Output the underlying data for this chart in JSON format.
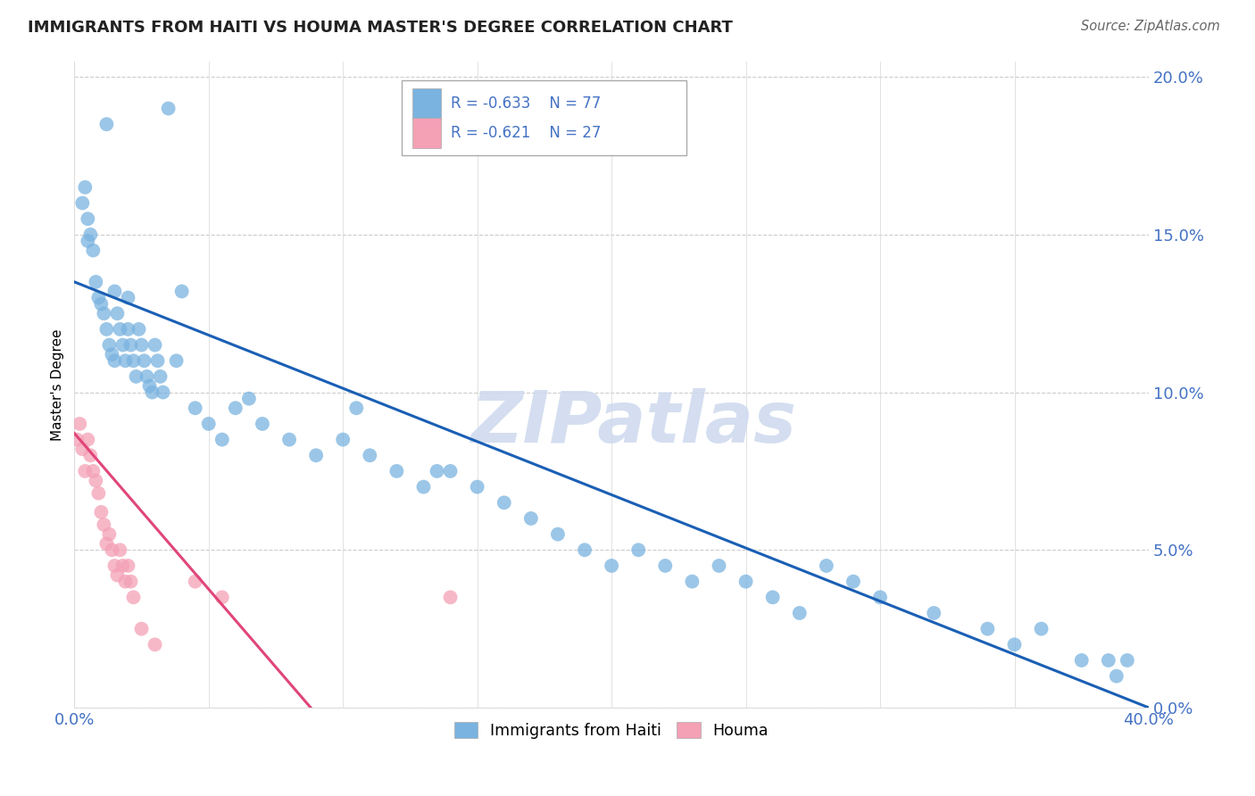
{
  "title": "IMMIGRANTS FROM HAITI VS HOUMA MASTER'S DEGREE CORRELATION CHART",
  "source": "Source: ZipAtlas.com",
  "ylabel": "Master's Degree",
  "right_ytick_vals": [
    0.0,
    5.0,
    10.0,
    15.0,
    20.0
  ],
  "xmin": 0.0,
  "xmax": 40.0,
  "ymin": 0.0,
  "ymax": 20.5,
  "blue_R": -0.633,
  "blue_N": 77,
  "pink_R": -0.621,
  "pink_N": 27,
  "legend_label_blue": "Immigrants from Haiti",
  "legend_label_pink": "Houma",
  "blue_color": "#7ab3e0",
  "pink_color": "#f4a0b5",
  "blue_line_color": "#1a5fb5",
  "pink_line_color": "#e0457a",
  "watermark": "ZIPatlas",
  "blue_scatter_x": [
    0.3,
    0.4,
    0.5,
    0.5,
    0.6,
    0.7,
    0.8,
    0.9,
    1.0,
    1.1,
    1.2,
    1.2,
    1.3,
    1.4,
    1.5,
    1.5,
    1.6,
    1.7,
    1.8,
    1.9,
    2.0,
    2.0,
    2.1,
    2.2,
    2.3,
    2.4,
    2.5,
    2.6,
    2.7,
    2.8,
    2.9,
    3.0,
    3.1,
    3.2,
    3.3,
    3.5,
    3.8,
    4.0,
    4.5,
    5.0,
    5.5,
    6.0,
    6.5,
    7.0,
    8.0,
    9.0,
    10.0,
    10.5,
    11.0,
    12.0,
    13.0,
    13.5,
    14.0,
    15.0,
    16.0,
    17.0,
    18.0,
    19.0,
    20.0,
    21.0,
    22.0,
    23.0,
    24.0,
    25.0,
    26.0,
    27.0,
    28.0,
    29.0,
    30.0,
    32.0,
    34.0,
    35.0,
    36.0,
    37.5,
    38.5,
    38.8,
    39.2
  ],
  "blue_scatter_y": [
    16.0,
    16.5,
    15.5,
    14.8,
    15.0,
    14.5,
    13.5,
    13.0,
    12.8,
    12.5,
    18.5,
    12.0,
    11.5,
    11.2,
    13.2,
    11.0,
    12.5,
    12.0,
    11.5,
    11.0,
    13.0,
    12.0,
    11.5,
    11.0,
    10.5,
    12.0,
    11.5,
    11.0,
    10.5,
    10.2,
    10.0,
    11.5,
    11.0,
    10.5,
    10.0,
    19.0,
    11.0,
    13.2,
    9.5,
    9.0,
    8.5,
    9.5,
    9.8,
    9.0,
    8.5,
    8.0,
    8.5,
    9.5,
    8.0,
    7.5,
    7.0,
    7.5,
    7.5,
    7.0,
    6.5,
    6.0,
    5.5,
    5.0,
    4.5,
    5.0,
    4.5,
    4.0,
    4.5,
    4.0,
    3.5,
    3.0,
    4.5,
    4.0,
    3.5,
    3.0,
    2.5,
    2.0,
    2.5,
    1.5,
    1.5,
    1.0,
    1.5
  ],
  "pink_scatter_x": [
    0.1,
    0.2,
    0.3,
    0.4,
    0.5,
    0.6,
    0.7,
    0.8,
    0.9,
    1.0,
    1.1,
    1.2,
    1.3,
    1.4,
    1.5,
    1.6,
    1.7,
    1.8,
    1.9,
    2.0,
    2.1,
    2.2,
    2.5,
    3.0,
    4.5,
    5.5,
    14.0
  ],
  "pink_scatter_y": [
    8.5,
    9.0,
    8.2,
    7.5,
    8.5,
    8.0,
    7.5,
    7.2,
    6.8,
    6.2,
    5.8,
    5.2,
    5.5,
    5.0,
    4.5,
    4.2,
    5.0,
    4.5,
    4.0,
    4.5,
    4.0,
    3.5,
    2.5,
    2.0,
    4.0,
    3.5,
    3.5
  ],
  "blue_line_x": [
    0.0,
    40.0
  ],
  "blue_line_y_start": 13.5,
  "blue_line_y_end": 0.0,
  "pink_line_x": [
    0.0,
    8.8
  ],
  "pink_line_y_start": 8.7,
  "pink_line_y_end": 0.0
}
